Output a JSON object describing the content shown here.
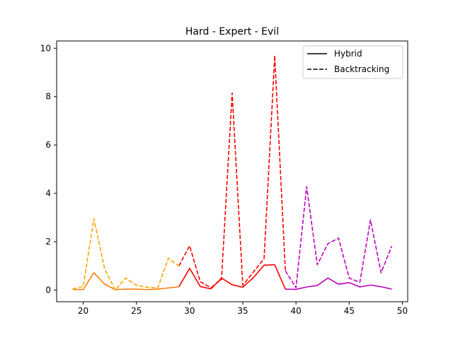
{
  "chart_data": {
    "type": "line",
    "title": "Hard - Expert - Evil",
    "xlabel": "",
    "ylabel": "",
    "xlim": [
      17.5,
      50.5
    ],
    "ylim": [
      -0.48,
      10.3
    ],
    "xticks": [
      20,
      25,
      30,
      35,
      40,
      45,
      50
    ],
    "yticks": [
      0,
      2,
      4,
      6,
      8,
      10
    ],
    "grid": false,
    "legend": {
      "placement": "top-right",
      "entries": [
        {
          "label": "Hybrid",
          "style": "solid"
        },
        {
          "label": "Backtracking",
          "style": "dashed"
        }
      ]
    },
    "segments": [
      {
        "group": "hard",
        "method": "Hybrid",
        "style": "solid",
        "color": "#ff7f0e",
        "x": [
          19,
          20,
          21,
          22,
          23,
          24,
          25,
          26,
          27,
          28,
          29
        ],
        "y": [
          0.03,
          0.02,
          0.72,
          0.25,
          0.02,
          0.04,
          0.04,
          0.02,
          0.04,
          0.09,
          0.14
        ]
      },
      {
        "group": "hard",
        "method": "Backtracking",
        "style": "dashed",
        "color": "#ffa500",
        "x": [
          19,
          20,
          21,
          22,
          23,
          24,
          25,
          26,
          27,
          28,
          29
        ],
        "y": [
          0.05,
          0.15,
          2.95,
          0.9,
          0.0,
          0.5,
          0.2,
          0.12,
          0.08,
          1.32,
          1.0
        ]
      },
      {
        "group": "expert",
        "method": "Hybrid",
        "style": "solid",
        "color": "#ff0000",
        "x": [
          29,
          30,
          31,
          32,
          33,
          34,
          35,
          36,
          37,
          38
        ],
        "y": [
          0.14,
          0.9,
          0.15,
          0.05,
          0.5,
          0.22,
          0.12,
          0.52,
          1.03,
          1.05
        ]
      },
      {
        "group": "expert",
        "method": "Backtracking",
        "style": "dashed",
        "color": "#ff0000",
        "x": [
          29,
          30,
          31,
          32,
          33,
          34,
          35,
          36,
          37,
          38
        ],
        "y": [
          1.0,
          1.83,
          0.35,
          0.1,
          0.45,
          8.15,
          0.2,
          0.75,
          1.3,
          9.68
        ]
      },
      {
        "group": "evil",
        "method": "Hybrid",
        "style": "solid",
        "color": "#c000c0",
        "x": [
          39,
          40,
          41,
          42,
          43,
          44,
          45,
          46,
          47,
          48,
          49
        ],
        "y": [
          0.04,
          0.03,
          0.13,
          0.19,
          0.5,
          0.24,
          0.31,
          0.13,
          0.21,
          0.14,
          0.04
        ]
      },
      {
        "group": "evil",
        "method": "Backtracking",
        "style": "dashed",
        "color": "#c000c0",
        "x": [
          39,
          40,
          41,
          42,
          43,
          44,
          45,
          46,
          47,
          48,
          49
        ],
        "y": [
          0.8,
          0.1,
          4.28,
          1.05,
          1.92,
          2.15,
          0.5,
          0.32,
          2.9,
          0.72,
          1.82
        ]
      }
    ],
    "connectors": [
      {
        "style": "solid",
        "color": "#ff0000",
        "from": [
          38,
          1.05
        ],
        "to": [
          39,
          0.04
        ]
      },
      {
        "style": "dashed",
        "color": "#ff0000",
        "from": [
          38,
          9.68
        ],
        "to": [
          39,
          0.8
        ]
      }
    ]
  }
}
